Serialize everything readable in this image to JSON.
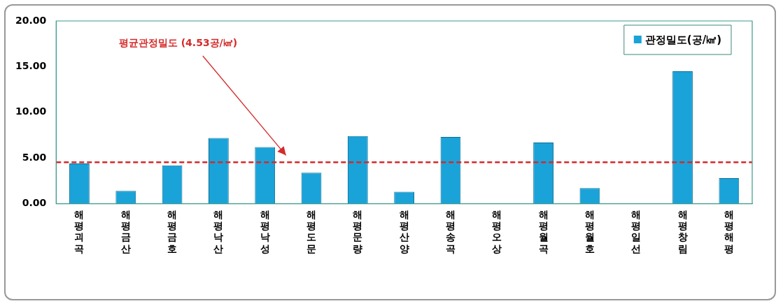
{
  "chart_data": {
    "type": "bar",
    "categories": [
      "해평괴곡",
      "해평금산",
      "해평금호",
      "해평낙산",
      "해평낙성",
      "해평도문",
      "해평문량",
      "해평산양",
      "해평송곡",
      "해평오상",
      "해평월곡",
      "해평월호",
      "해평일선",
      "해평창림",
      "해평해평"
    ],
    "series": [
      {
        "name": "관정밀도(공/㎢)",
        "color": "#1aa3d9",
        "values": [
          4.4,
          1.4,
          4.2,
          7.2,
          6.2,
          3.4,
          7.4,
          1.3,
          7.3,
          0,
          6.7,
          1.7,
          0,
          14.5,
          2.8
        ]
      }
    ],
    "ylim": [
      0,
      20
    ],
    "yticks": [
      {
        "value": 0,
        "label": "0.00"
      },
      {
        "value": 5,
        "label": "5.00"
      },
      {
        "value": 10,
        "label": "10.00"
      },
      {
        "value": 15,
        "label": "15.00"
      },
      {
        "value": 20,
        "label": "20.00"
      }
    ],
    "ref_lines": [
      {
        "axis": "y",
        "value": 4.53,
        "label": "평균관정밀도 (4.53공/㎢)",
        "color": "#d42a2a",
        "line_style": "dashed"
      }
    ],
    "grid": false,
    "legend": "top right"
  }
}
